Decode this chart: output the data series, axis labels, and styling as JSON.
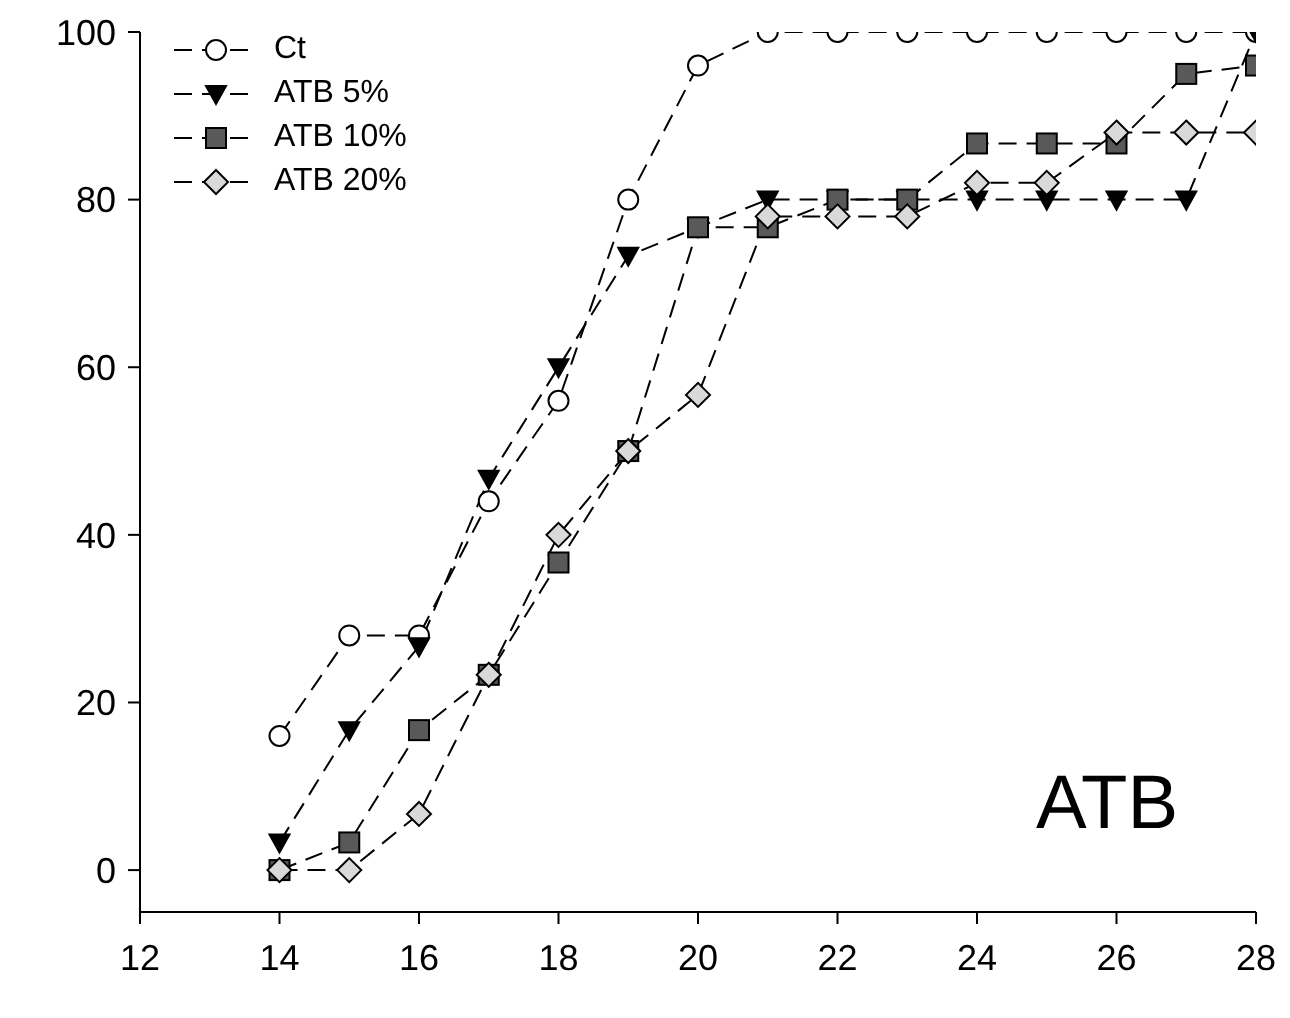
{
  "chart_data": {
    "type": "line",
    "x": [
      14,
      15,
      16,
      17,
      18,
      19,
      20,
      21,
      22,
      23,
      24,
      25,
      26,
      27,
      28
    ],
    "series": [
      {
        "name": "Ct",
        "color": "#ffffff",
        "marker": "circle",
        "values": [
          16,
          28,
          28,
          44,
          56,
          80,
          96,
          100,
          100,
          100,
          100,
          100,
          100,
          100,
          100
        ]
      },
      {
        "name": "ATB 5%",
        "color": "#000000",
        "marker": "triangle",
        "values": [
          3.3,
          16.7,
          26.7,
          46.7,
          60,
          73.3,
          76.7,
          80,
          80,
          80,
          80,
          80,
          80,
          80,
          100
        ]
      },
      {
        "name": "ATB 10%",
        "color": "#595959",
        "marker": "square",
        "values": [
          0,
          3.3,
          16.7,
          23.3,
          36.7,
          50,
          76.7,
          76.7,
          80,
          80,
          86.7,
          86.7,
          86.7,
          95,
          96
        ]
      },
      {
        "name": "ATB 20%",
        "color": "#d9d9d9",
        "marker": "diamond",
        "values": [
          0,
          0,
          6.7,
          23.3,
          40,
          50,
          56.7,
          78,
          78,
          78,
          82,
          82,
          88,
          88,
          88
        ]
      }
    ],
    "xlim": [
      12,
      28
    ],
    "xticks": [
      12,
      14,
      16,
      18,
      20,
      22,
      24,
      26,
      28
    ],
    "ylim": [
      -5,
      100
    ],
    "yticks": [
      0,
      20,
      40,
      60,
      80,
      100
    ],
    "grid": false,
    "legend": "top left",
    "line_style": "dashed",
    "annotations": [
      "ATB"
    ]
  }
}
